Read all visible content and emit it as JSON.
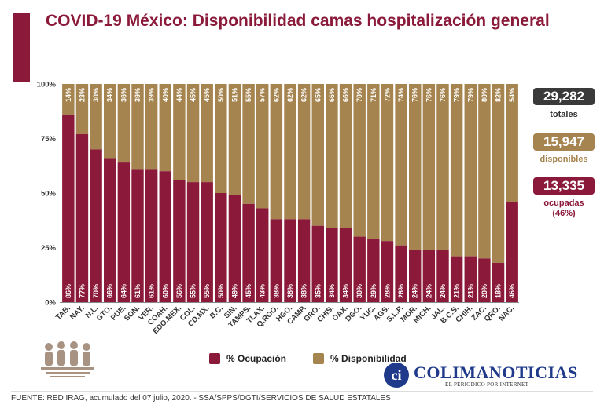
{
  "header": {
    "title": "COVID-19 México: Disponibilidad camas hospitalización general"
  },
  "stats": {
    "total_value": "29,282",
    "total_label": "totales",
    "available_value": "15,947",
    "available_label": "disponibles",
    "occupied_value": "13,335",
    "occupied_label": "ocupadas",
    "occupied_pct": "(46%)"
  },
  "colors": {
    "occupied": "#8b1a3a",
    "available": "#a6844f",
    "dark": "#3a3a3a"
  },
  "legend": {
    "occupied": "% Ocupación",
    "available": "% Disponibilidad"
  },
  "footer": {
    "source": "FUENTE: RED IRAG, acumulado del 07 julio, 2020. -  SSA/SPPS/DGTI/SERVICIOS DE SALUD ESTATALES"
  },
  "brand": {
    "initials": "ci",
    "name": "COLIMANOTICIAS",
    "tagline": "EL PERIODICO POR INTERNET"
  },
  "chart_data": {
    "type": "bar",
    "stacked": true,
    "categories": [
      "TAB.",
      "NAY.",
      "N.L.",
      "GTO.",
      "PUE.",
      "SON.",
      "VER.",
      "COAH.",
      "EDO.MEX.",
      "COL.",
      "CD.MX.",
      "B.C.",
      "SIN.",
      "TAMPS.",
      "TLAX.",
      "Q.ROO.",
      "HGO.",
      "CAMP.",
      "GRO.",
      "CHIS.",
      "OAX.",
      "DGO.",
      "YUC.",
      "AGS.",
      "S.L.P.",
      "MOR.",
      "MICH.",
      "JAL.",
      "B.C.S.",
      "CHIH.",
      "ZAC.",
      "QRO.",
      "NAC."
    ],
    "series": [
      {
        "name": "% Ocupación",
        "values": [
          86,
          77,
          70,
          66,
          64,
          61,
          61,
          60,
          56,
          55,
          55,
          50,
          49,
          45,
          43,
          38,
          38,
          38,
          35,
          34,
          34,
          30,
          29,
          28,
          26,
          24,
          24,
          24,
          21,
          21,
          20,
          18,
          46
        ]
      },
      {
        "name": "% Disponibilidad",
        "values": [
          14,
          23,
          30,
          34,
          36,
          39,
          39,
          40,
          44,
          45,
          45,
          50,
          51,
          55,
          57,
          62,
          62,
          62,
          65,
          66,
          66,
          70,
          71,
          72,
          74,
          76,
          76,
          76,
          79,
          79,
          80,
          82,
          54
        ]
      }
    ],
    "y_ticks": [
      "0%",
      "25%",
      "50%",
      "75%",
      "100%"
    ],
    "ylim": [
      0,
      100
    ]
  }
}
